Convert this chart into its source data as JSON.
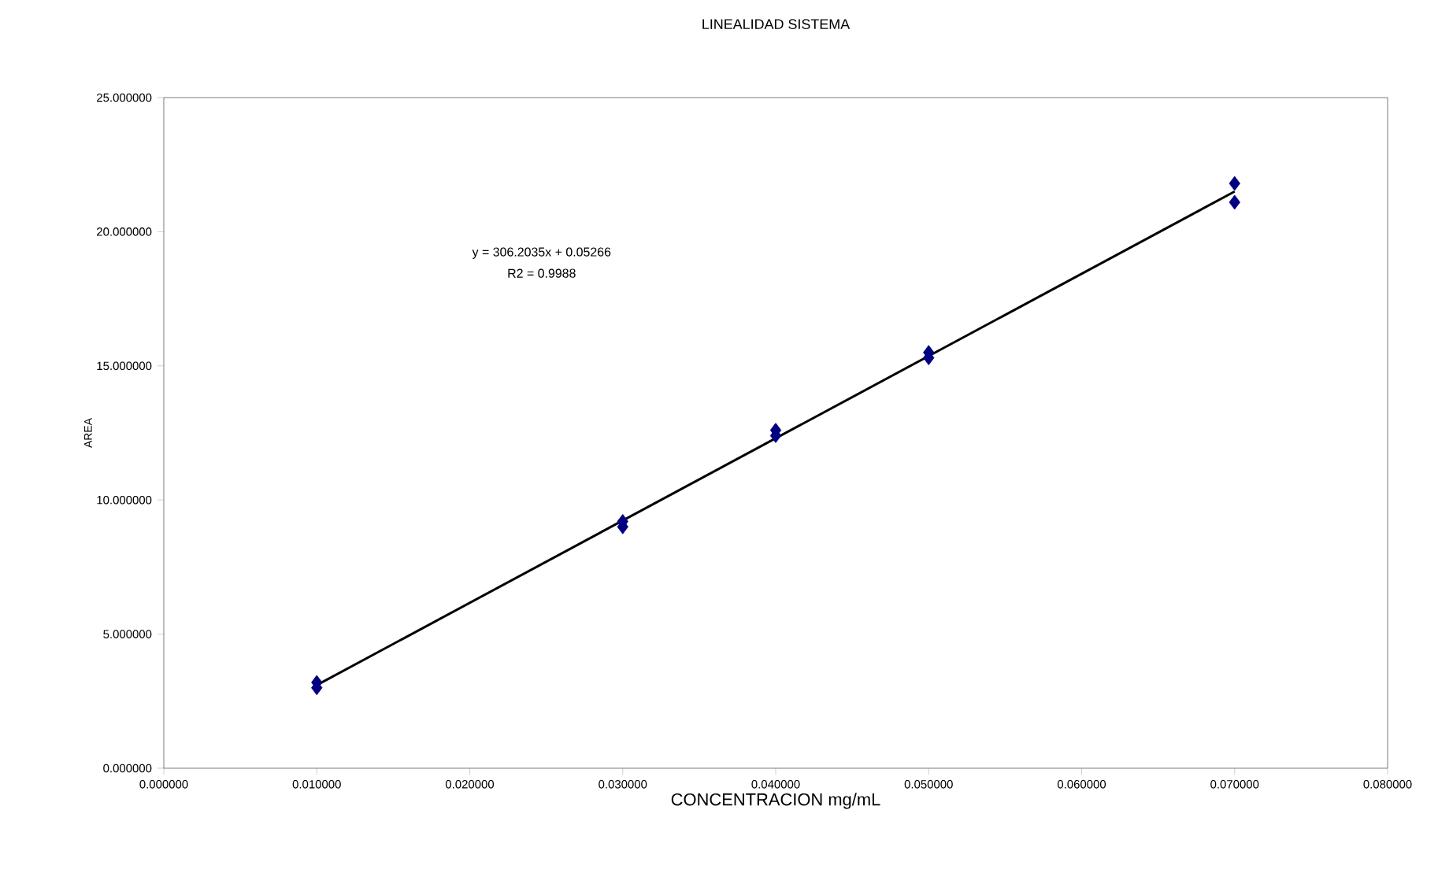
{
  "chart_data": {
    "type": "scatter",
    "title": "LINEALIDAD SISTEMA",
    "xlabel": "CONCENTRACION  mg/mL",
    "ylabel": "AREA",
    "annotations": [
      "y = 306.2035x + 0.05266",
      "R2 = 0.9988"
    ],
    "series": [
      {
        "color": "#000080",
        "marker": "diamond",
        "x": [
          0.01,
          0.01,
          0.03,
          0.03,
          0.04,
          0.04,
          0.05,
          0.05,
          0.07,
          0.07
        ],
        "values": [
          3.2,
          3.0,
          9.2,
          9.0,
          12.6,
          12.4,
          15.5,
          15.3,
          21.8,
          21.1
        ]
      },
      {
        "type": "line",
        "color": "#000000",
        "marker": "none",
        "line_style": "solid",
        "x": [
          0.01,
          0.07
        ],
        "values": [
          3.1,
          21.5
        ]
      }
    ],
    "xlim": [
      0,
      0.08
    ],
    "xticks": [
      {
        "value": 0,
        "label": "0.000000"
      },
      {
        "value": 0.01,
        "label": "0.010000"
      },
      {
        "value": 0.02,
        "label": "0.020000"
      },
      {
        "value": 0.03,
        "label": "0.030000"
      },
      {
        "value": 0.04,
        "label": "0.040000"
      },
      {
        "value": 0.05,
        "label": "0.050000"
      },
      {
        "value": 0.06,
        "label": "0.060000"
      },
      {
        "value": 0.07,
        "label": "0.070000"
      },
      {
        "value": 0.08,
        "label": "0.080000"
      }
    ],
    "ylim": [
      0,
      25
    ],
    "yticks": [
      {
        "value": 0,
        "label": "0.000000"
      },
      {
        "value": 5,
        "label": "5.000000"
      },
      {
        "value": 10,
        "label": "10.000000"
      },
      {
        "value": 15,
        "label": "15.000000"
      },
      {
        "value": 20,
        "label": "20.000000"
      },
      {
        "value": 25,
        "label": "25.000000"
      }
    ],
    "grid": false
  }
}
